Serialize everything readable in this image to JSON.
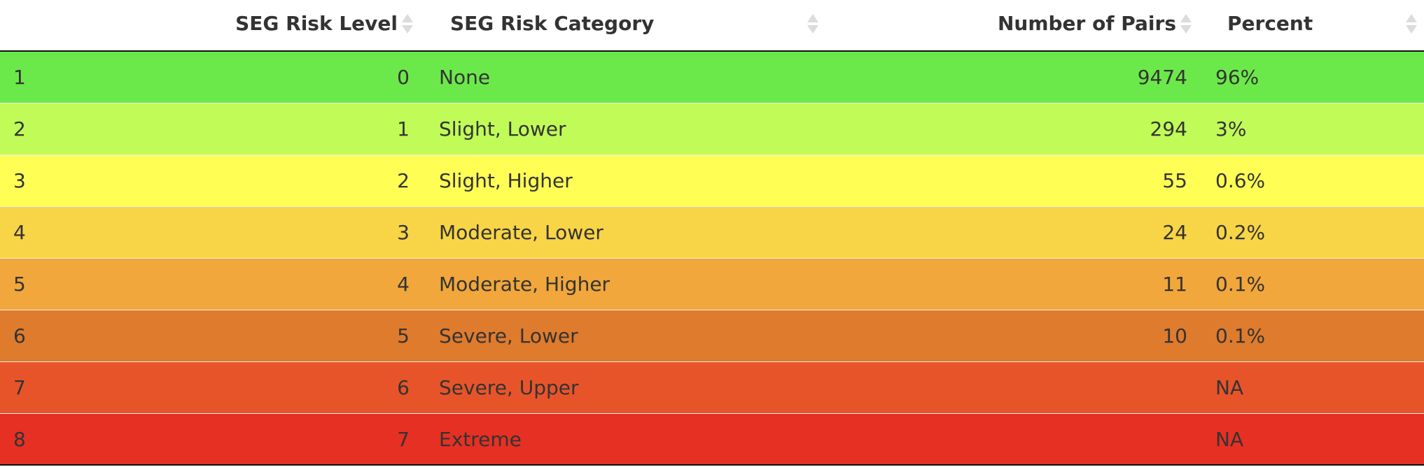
{
  "table": {
    "columns": {
      "level": "SEG Risk Level",
      "category": "SEG Risk Category",
      "pairs": "Number of Pairs",
      "percent": "Percent"
    },
    "rows": [
      {
        "idx": "1",
        "level": "0",
        "category": "None",
        "pairs": "9474",
        "percent": "96%",
        "color": "#6ce94a"
      },
      {
        "idx": "2",
        "level": "1",
        "category": "Slight, Lower",
        "pairs": "294",
        "percent": "3%",
        "color": "#c0fb58"
      },
      {
        "idx": "3",
        "level": "2",
        "category": "Slight, Higher",
        "pairs": "55",
        "percent": "0.6%",
        "color": "#fffe55"
      },
      {
        "idx": "4",
        "level": "3",
        "category": "Moderate, Lower",
        "pairs": "24",
        "percent": "0.2%",
        "color": "#f8d546"
      },
      {
        "idx": "5",
        "level": "4",
        "category": "Moderate, Higher",
        "pairs": "11",
        "percent": "0.1%",
        "color": "#f1a73b"
      },
      {
        "idx": "6",
        "level": "5",
        "category": "Severe, Lower",
        "pairs": "10",
        "percent": "0.1%",
        "color": "#df7b2d"
      },
      {
        "idx": "7",
        "level": "6",
        "category": "Severe, Upper",
        "pairs": "",
        "percent": "NA",
        "color": "#e8542a"
      },
      {
        "idx": "8",
        "level": "7",
        "category": "Extreme",
        "pairs": "",
        "percent": "NA",
        "color": "#e63023"
      }
    ]
  },
  "icons": {
    "sort": "sort-arrows-icon"
  }
}
